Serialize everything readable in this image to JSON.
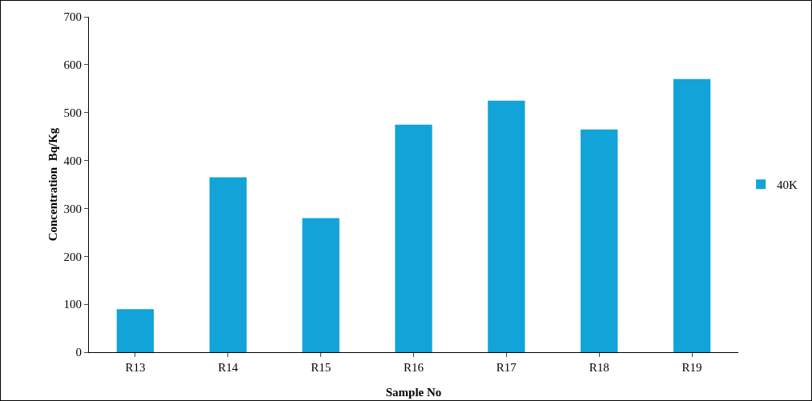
{
  "chart_data": {
    "type": "bar",
    "xlabel": "Sample No",
    "ylabel": "Concentration  Bq/Kg",
    "categories": [
      "R13",
      "R14",
      "R15",
      "R16",
      "R17",
      "R18",
      "R19"
    ],
    "series": [
      {
        "name": "40K",
        "color": "#12a3d8",
        "values": [
          90,
          365,
          280,
          475,
          525,
          465,
          570
        ]
      }
    ],
    "ylim": [
      0,
      700
    ],
    "yticks": [
      0,
      100,
      200,
      300,
      400,
      500,
      600,
      700
    ],
    "grid": false,
    "legend": "right"
  }
}
